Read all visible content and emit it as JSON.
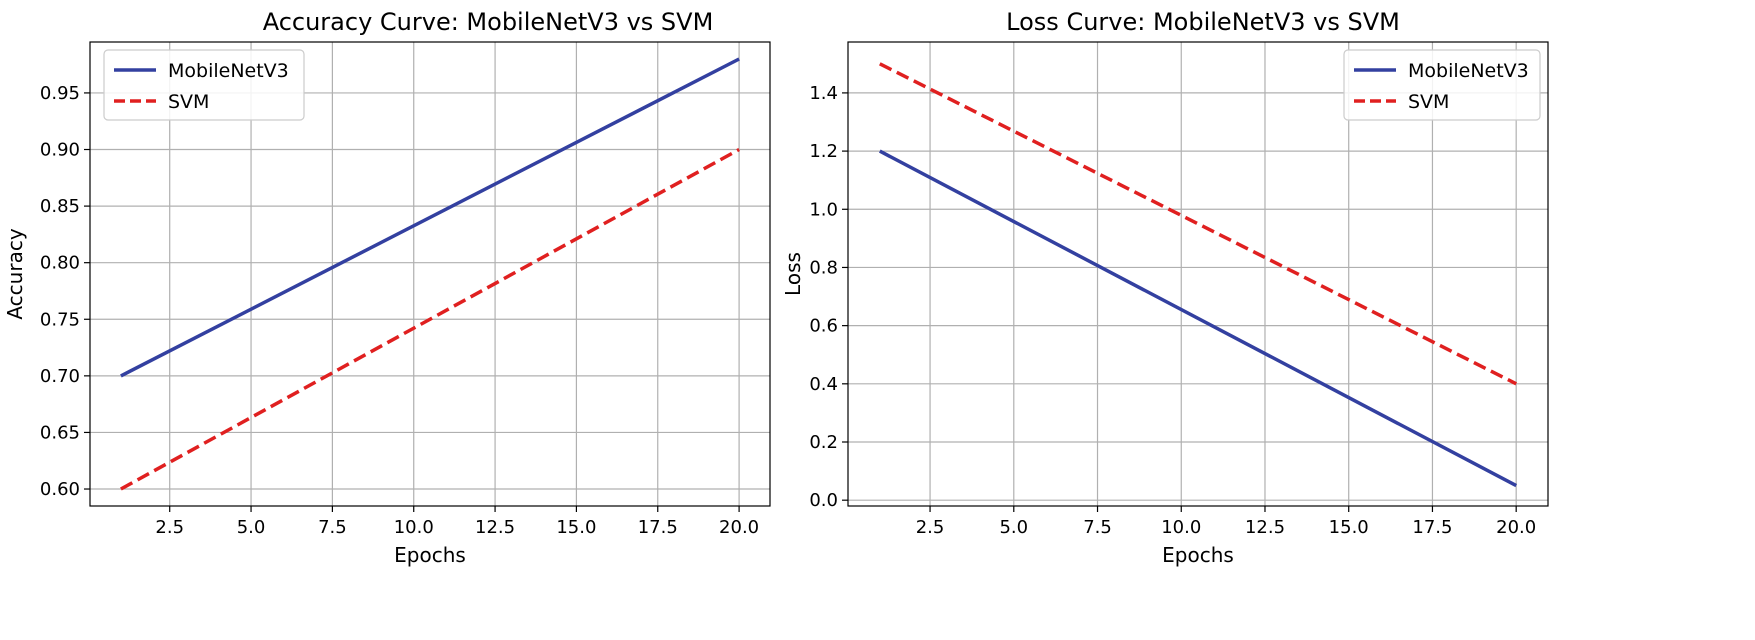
{
  "chart_data": [
    {
      "type": "line",
      "title": "Accuracy Curve: MobileNetV3 vs SVM",
      "xlabel": "Epochs",
      "ylabel": "Accuracy",
      "xlim": [
        0.05,
        20.95
      ],
      "ylim": [
        0.585,
        0.995
      ],
      "xticks": [
        "2.5",
        "5.0",
        "7.5",
        "10.0",
        "12.5",
        "15.0",
        "17.5",
        "20.0"
      ],
      "yticks": [
        "0.60",
        "0.65",
        "0.70",
        "0.75",
        "0.80",
        "0.85",
        "0.90",
        "0.95"
      ],
      "grid": true,
      "legend_position": "top-left",
      "series": [
        {
          "name": "MobileNetV3",
          "color": "#3340a0",
          "style": "solid",
          "x": [
            1,
            20
          ],
          "y": [
            0.7,
            0.98
          ]
        },
        {
          "name": "SVM",
          "color": "#e02020",
          "style": "dashed",
          "x": [
            1,
            20
          ],
          "y": [
            0.6,
            0.9
          ]
        }
      ]
    },
    {
      "type": "line",
      "title": "Loss Curve: MobileNetV3 vs SVM",
      "xlabel": "Epochs",
      "ylabel": "Loss",
      "xlim": [
        0.05,
        20.95
      ],
      "ylim": [
        -0.02,
        1.575
      ],
      "xticks": [
        "2.5",
        "5.0",
        "7.5",
        "10.0",
        "12.5",
        "15.0",
        "17.5",
        "20.0"
      ],
      "yticks": [
        "0.0",
        "0.2",
        "0.4",
        "0.6",
        "0.8",
        "1.0",
        "1.2",
        "1.4"
      ],
      "grid": true,
      "legend_position": "top-right",
      "series": [
        {
          "name": "MobileNetV3",
          "color": "#3340a0",
          "style": "solid",
          "x": [
            1,
            20
          ],
          "y": [
            1.2,
            0.05
          ]
        },
        {
          "name": "SVM",
          "color": "#e02020",
          "style": "dashed",
          "x": [
            1,
            20
          ],
          "y": [
            1.5,
            0.4
          ]
        }
      ]
    }
  ]
}
